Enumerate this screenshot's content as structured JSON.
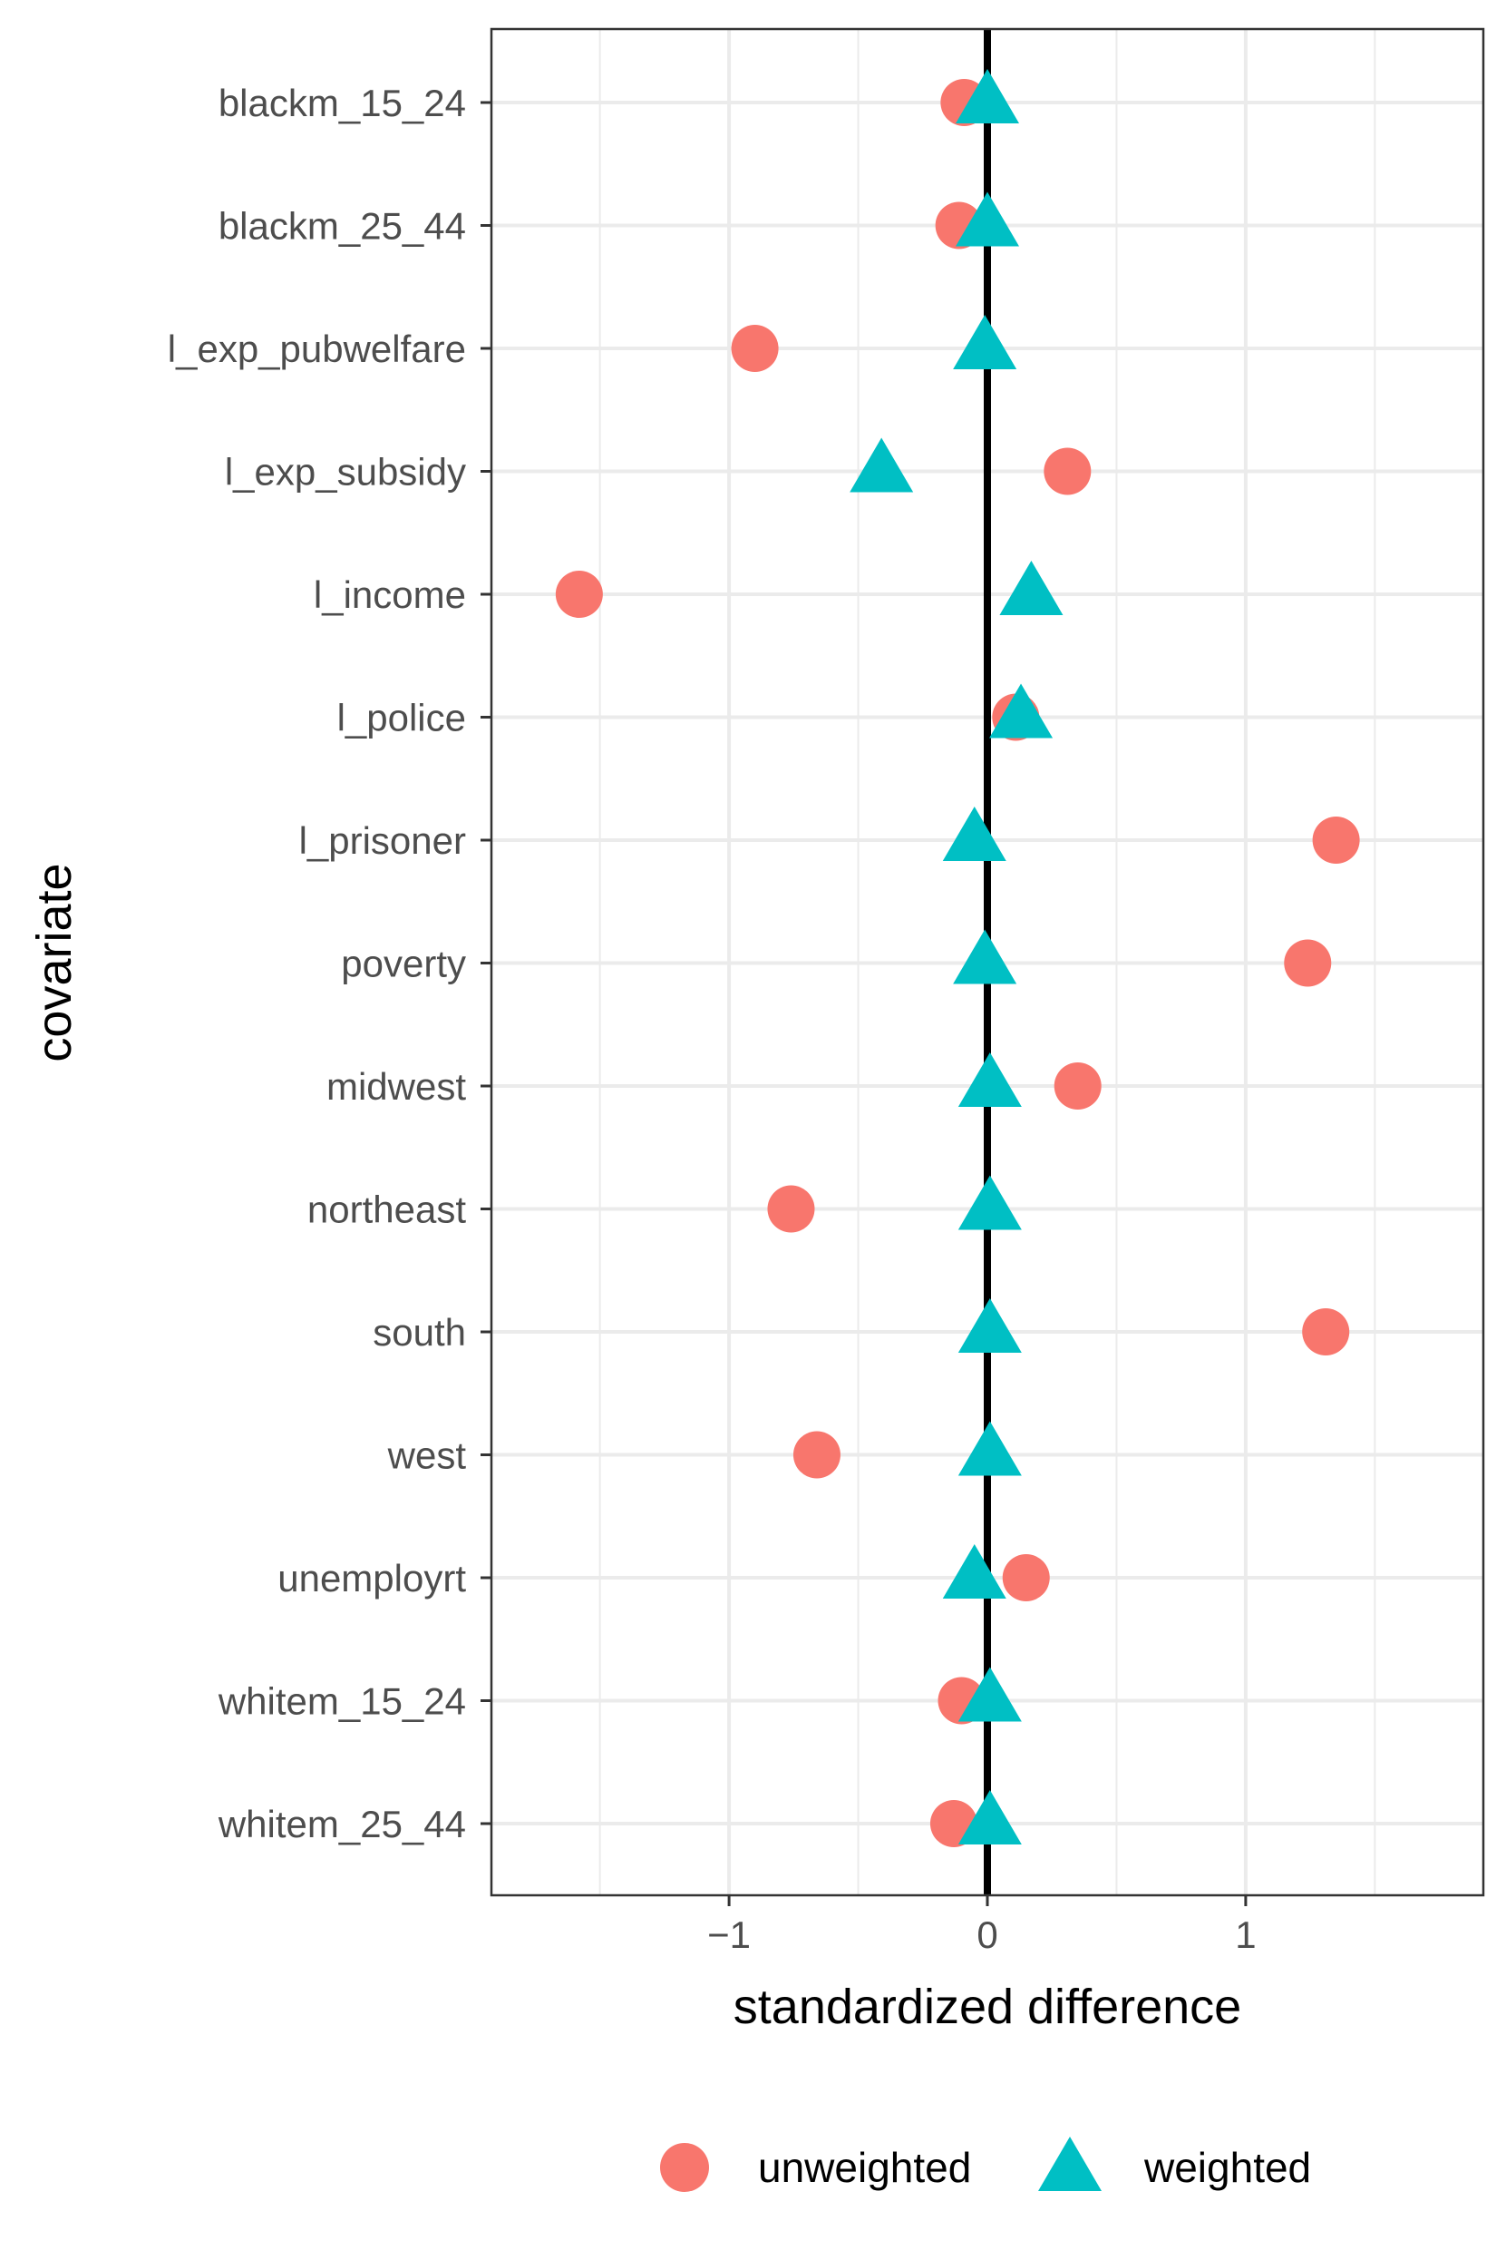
{
  "chart_data": {
    "type": "scatter",
    "title": "",
    "xlabel": "standardized difference",
    "ylabel": "covariate",
    "xlim": [
      -1.92,
      1.92
    ],
    "xticks": [
      -1,
      0,
      1
    ],
    "xtick_labels": [
      "−1",
      "0",
      "1"
    ],
    "grid": true,
    "reference_line": 0,
    "legend_position": "bottom",
    "categories": [
      "blackm_15_24",
      "blackm_25_44",
      "l_exp_pubwelfare",
      "l_exp_subsidy",
      "l_income",
      "l_police",
      "l_prisoner",
      "poverty",
      "midwest",
      "northeast",
      "south",
      "west",
      "unemployrt",
      "whitem_15_24",
      "whitem_25_44"
    ],
    "series": [
      {
        "name": "unweighted",
        "marker": "circle",
        "color": "#F8766D",
        "values": [
          -0.09,
          -0.11,
          -0.9,
          0.31,
          -1.58,
          0.11,
          1.35,
          1.24,
          0.35,
          -0.76,
          1.31,
          -0.66,
          0.15,
          -0.1,
          -0.13
        ]
      },
      {
        "name": "weighted",
        "marker": "triangle",
        "color": "#00BFC4",
        "values": [
          0.0,
          0.0,
          -0.01,
          -0.41,
          0.17,
          0.13,
          -0.05,
          -0.01,
          0.01,
          0.01,
          0.01,
          0.01,
          -0.05,
          0.01,
          0.01
        ]
      }
    ]
  }
}
